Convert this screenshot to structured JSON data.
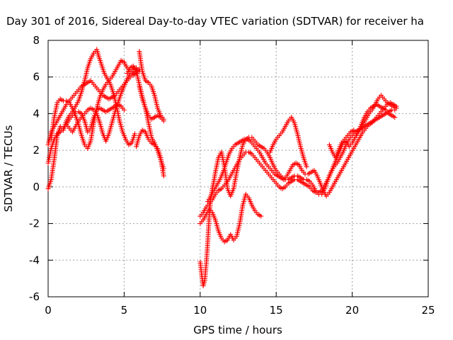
{
  "chart_data": {
    "type": "scatter",
    "title": "Day 301 of 2016, Sidereal Day-to-day VTEC variation (SDTVAR) for receiver ha",
    "xlabel": "GPS time / hours",
    "ylabel": "SDTVAR / TECUs",
    "xlim": [
      0,
      25
    ],
    "ylim": [
      -6,
      8
    ],
    "xticks": [
      0,
      5,
      10,
      15,
      20,
      25
    ],
    "yticks": [
      -6,
      -4,
      -2,
      0,
      2,
      4,
      6,
      8
    ],
    "grid": true,
    "legend": "none",
    "marker": "plus",
    "color": "#ff0000",
    "series": [
      {
        "x": [
          0.0,
          0.2,
          0.4,
          0.6,
          0.8,
          1.0,
          1.2,
          1.4,
          1.6,
          1.8,
          2.0,
          2.2,
          2.4,
          2.6,
          2.8,
          3.0,
          3.2,
          3.3,
          3.5,
          3.7,
          3.9,
          4.1,
          4.3,
          4.5,
          4.7,
          4.9,
          5.1,
          5.3,
          5.5,
          5.7
        ],
        "values": [
          -0.1,
          0.4,
          1.5,
          2.8,
          3.3,
          3.1,
          3.6,
          3.9,
          4.1,
          4.4,
          4.7,
          5.2,
          5.8,
          6.5,
          7.0,
          7.3,
          7.5,
          7.2,
          6.7,
          6.2,
          5.9,
          5.6,
          5.1,
          4.4,
          3.6,
          3.0,
          2.6,
          2.3,
          2.4,
          2.9
        ]
      },
      {
        "x": [
          0.0,
          0.2,
          0.4,
          0.6,
          0.8,
          1.0,
          1.2,
          1.4,
          1.6,
          1.8,
          2.0,
          2.2,
          2.4,
          2.6,
          2.8,
          3.0,
          3.2,
          3.4,
          3.6,
          3.8,
          4.0,
          4.2,
          4.4,
          4.6,
          4.8,
          5.0,
          5.2,
          5.4,
          5.6,
          5.8,
          6.0
        ],
        "values": [
          1.3,
          2.1,
          2.6,
          2.9,
          3.0,
          3.2,
          3.4,
          3.2,
          3.0,
          3.3,
          3.6,
          3.8,
          4.0,
          4.2,
          4.3,
          4.2,
          4.0,
          3.5,
          2.9,
          2.5,
          2.9,
          3.5,
          4.1,
          4.6,
          5.1,
          5.5,
          5.9,
          6.2,
          6.4,
          6.5,
          6.3
        ]
      },
      {
        "x": [
          0.2,
          0.4,
          0.6,
          0.8,
          1.0,
          1.2,
          1.4,
          1.6,
          1.8,
          2.0,
          2.2,
          2.4,
          2.6,
          2.8,
          3.0,
          3.2,
          3.4,
          3.6,
          3.8,
          4.0,
          4.2,
          4.4,
          4.6,
          4.8,
          5.0,
          5.2,
          5.4,
          5.6,
          5.8,
          6.0
        ],
        "values": [
          2.6,
          3.8,
          4.6,
          4.8,
          4.7,
          4.7,
          4.6,
          4.3,
          3.9,
          3.4,
          2.8,
          2.3,
          2.1,
          2.5,
          3.5,
          4.3,
          4.9,
          5.3,
          5.6,
          5.8,
          6.0,
          6.3,
          6.6,
          6.9,
          6.8,
          6.5,
          6.3,
          6.1,
          6.2,
          6.4
        ]
      },
      {
        "x": [
          0.0,
          0.2,
          0.4,
          0.6,
          0.8,
          1.0,
          1.2,
          1.4,
          1.6,
          1.8,
          2.0,
          2.2,
          2.4,
          2.6,
          2.8,
          3.0,
          3.2,
          3.4,
          3.6,
          3.8,
          4.0,
          4.2,
          4.4,
          4.6,
          4.8,
          5.0,
          5.2,
          5.4,
          5.6,
          5.8,
          6.0
        ],
        "values": [
          2.3,
          3.0,
          3.3,
          3.6,
          3.9,
          4.2,
          4.5,
          4.7,
          4.9,
          5.1,
          5.3,
          5.5,
          5.6,
          5.7,
          5.8,
          5.6,
          5.4,
          5.2,
          5.0,
          4.9,
          4.8,
          4.9,
          5.0,
          5.2,
          5.4,
          5.6,
          5.8,
          6.0,
          6.2,
          6.3,
          6.4
        ]
      },
      {
        "x": [
          1.2,
          1.4,
          1.6,
          1.8,
          2.0,
          2.2,
          2.4,
          2.6,
          2.8,
          3.0,
          3.2,
          3.4,
          3.6,
          3.8,
          4.0,
          4.2,
          4.4,
          4.6,
          4.8,
          5.0
        ],
        "values": [
          3.4,
          3.7,
          3.9,
          4.1,
          4.1,
          4.0,
          3.6,
          3.0,
          3.2,
          3.8,
          4.2,
          4.3,
          4.2,
          4.1,
          4.2,
          4.3,
          4.4,
          4.5,
          4.4,
          4.2
        ]
      },
      {
        "x": [
          5.2,
          5.4,
          5.6,
          5.8,
          6.0,
          6.2,
          6.4,
          6.6,
          6.8,
          7.0,
          7.2,
          7.4,
          7.6
        ],
        "values": [
          6.2,
          6.5,
          6.6,
          6.3,
          5.6,
          4.9,
          4.3,
          3.9,
          3.7,
          3.8,
          3.9,
          3.8,
          3.6
        ]
      },
      {
        "x": [
          6.0,
          6.1,
          6.2,
          6.4,
          6.6,
          6.8,
          7.0,
          7.2,
          7.4,
          7.6
        ],
        "values": [
          7.4,
          6.8,
          6.3,
          5.8,
          5.7,
          5.5,
          5.0,
          4.3,
          3.9,
          3.7
        ]
      },
      {
        "x": [
          5.8,
          6.0,
          6.2,
          6.4,
          6.6,
          6.8,
          7.0,
          7.2,
          7.4,
          7.6
        ],
        "values": [
          2.2,
          2.8,
          3.1,
          3.0,
          2.6,
          2.4,
          2.3,
          2.1,
          1.6,
          0.6
        ]
      },
      {
        "x": [
          6.0,
          6.2,
          6.4,
          6.6,
          6.8,
          7.0,
          7.2,
          7.4,
          7.6
        ],
        "values": [
          5.5,
          4.8,
          4.3,
          3.5,
          2.7,
          2.4,
          2.0,
          1.5,
          1.0
        ]
      },
      {
        "x": [
          10.0,
          10.1,
          10.2,
          10.3,
          10.4,
          10.5,
          10.6,
          10.7,
          10.8,
          10.9,
          11.0,
          11.2,
          11.4,
          11.6,
          11.8,
          12.0,
          12.2,
          12.4,
          12.6,
          12.8,
          13.0,
          13.2,
          13.4,
          13.6,
          13.8,
          14.0,
          14.2,
          14.4,
          14.6,
          14.8,
          15.0,
          15.2,
          15.4,
          15.6,
          15.8,
          16.0,
          16.2,
          16.4,
          16.6,
          16.8,
          17.0,
          17.2,
          17.4,
          17.6,
          17.8,
          18.0,
          18.2,
          18.4,
          18.6,
          18.8,
          19.0,
          19.2,
          19.4,
          19.6,
          19.8,
          20.0,
          20.2,
          20.4,
          20.6,
          20.8,
          21.0,
          21.2,
          21.4,
          21.6,
          21.8,
          22.0,
          22.2,
          22.4,
          22.6,
          22.8
        ],
        "values": [
          -4.1,
          -4.8,
          -5.4,
          -5.1,
          -4.2,
          -3.0,
          -1.5,
          -0.6,
          -0.1,
          0.3,
          0.8,
          1.6,
          1.9,
          1.1,
          -0.1,
          -0.5,
          -0.1,
          0.8,
          1.6,
          2.3,
          2.6,
          2.7,
          2.7,
          2.5,
          2.3,
          2.2,
          2.1,
          1.9,
          1.6,
          1.2,
          0.9,
          0.7,
          0.5,
          0.4,
          0.4,
          0.5,
          0.6,
          0.6,
          0.5,
          0.4,
          0.4,
          0.3,
          0.1,
          -0.2,
          -0.4,
          -0.4,
          -0.1,
          0.4,
          0.8,
          1.1,
          1.3,
          1.6,
          1.9,
          2.3,
          2.6,
          2.8,
          3.0,
          3.1,
          3.2,
          3.3,
          3.4,
          3.5,
          3.6,
          3.7,
          3.8,
          3.9,
          4.0,
          4.1,
          4.2,
          4.2
        ]
      },
      {
        "x": [
          10.0,
          10.2,
          10.4,
          10.6,
          10.8,
          11.0,
          11.2,
          11.4,
          11.6,
          11.8,
          12.0,
          12.2,
          12.4,
          12.6,
          12.8,
          13.0,
          13.2,
          13.4,
          13.6,
          13.8,
          14.0,
          14.2,
          14.4,
          14.6,
          14.8,
          15.0,
          15.2,
          15.4,
          15.6,
          15.8,
          16.0,
          16.2,
          16.4,
          16.6,
          16.8,
          17.0,
          17.2,
          17.4,
          17.6,
          17.8,
          18.0,
          18.2,
          18.4,
          18.6,
          18.8,
          19.0,
          19.2,
          19.4,
          19.6,
          19.8,
          20.0,
          20.2,
          20.4,
          20.6,
          20.8,
          21.0,
          21.2,
          21.4,
          21.6,
          21.8,
          22.0,
          22.2,
          22.4,
          22.6,
          22.8
        ],
        "values": [
          -1.6,
          -1.4,
          -1.1,
          -0.9,
          -0.7,
          -0.4,
          -0.2,
          -0.1,
          0.1,
          0.3,
          0.6,
          0.9,
          1.2,
          1.5,
          1.7,
          1.9,
          1.9,
          1.8,
          1.6,
          1.4,
          1.2,
          1.0,
          0.8,
          0.6,
          0.4,
          0.2,
          0.0,
          -0.1,
          0.0,
          0.2,
          0.3,
          0.4,
          0.4,
          0.3,
          0.2,
          0.1,
          0.0,
          -0.2,
          -0.3,
          -0.3,
          -0.2,
          0.1,
          0.4,
          0.8,
          1.2,
          1.6,
          2.0,
          2.4,
          2.5,
          2.2,
          2.4,
          2.7,
          3.0,
          3.4,
          3.8,
          4.1,
          4.3,
          4.4,
          4.5,
          4.4,
          4.3,
          4.2,
          4.0,
          3.9,
          3.8
        ]
      },
      {
        "x": [
          10.0,
          10.2,
          10.4,
          10.6,
          10.8,
          11.0,
          11.2,
          11.4,
          11.6,
          11.8,
          12.0,
          12.2,
          12.4,
          12.6,
          12.8,
          13.0,
          13.2,
          13.4,
          13.6,
          13.8,
          14.0
        ],
        "values": [
          -2.0,
          -1.8,
          -1.5,
          -1.2,
          -1.4,
          -1.8,
          -2.4,
          -2.8,
          -3.0,
          -2.9,
          -2.6,
          -2.9,
          -2.7,
          -2.0,
          -1.0,
          -0.4,
          -0.6,
          -1.0,
          -1.3,
          -1.5,
          -1.6
        ]
      },
      {
        "x": [
          10.5,
          10.7,
          10.9,
          11.1,
          11.3,
          11.5,
          11.7,
          11.9,
          12.1,
          12.3,
          12.5,
          12.7,
          12.9,
          13.1,
          13.3,
          13.5,
          13.7,
          13.9,
          14.1,
          14.3,
          14.5,
          14.7,
          14.9,
          15.1,
          15.3,
          15.5,
          15.7,
          15.9,
          16.1,
          16.3,
          16.5,
          16.7,
          16.9,
          17.1,
          17.3,
          17.5,
          17.7,
          17.9,
          18.1,
          18.3,
          18.5,
          18.7,
          18.9,
          19.1,
          19.3,
          19.5,
          19.7,
          19.9,
          20.1,
          20.3,
          20.5,
          20.7,
          20.9,
          21.1,
          21.3,
          21.5,
          21.7,
          21.9,
          22.1,
          22.3,
          22.5,
          22.7,
          22.9
        ],
        "values": [
          -0.8,
          -0.5,
          -0.2,
          0.1,
          0.4,
          0.8,
          1.3,
          1.8,
          2.1,
          2.3,
          2.4,
          2.5,
          2.6,
          2.6,
          2.5,
          2.3,
          2.1,
          1.9,
          1.6,
          1.3,
          1.1,
          0.9,
          0.7,
          0.6,
          0.5,
          0.4,
          0.6,
          0.9,
          1.2,
          1.3,
          1.2,
          0.9,
          0.7,
          0.7,
          0.8,
          0.9,
          0.6,
          0.2,
          -0.2,
          -0.5,
          -0.3,
          0.0,
          0.3,
          0.6,
          0.9,
          1.2,
          1.5,
          1.8,
          2.1,
          2.4,
          2.7,
          3.0,
          3.2,
          3.4,
          3.5,
          3.7,
          3.9,
          4.1,
          4.3,
          4.5,
          4.6,
          4.5,
          4.4
        ]
      },
      {
        "x": [
          14.6,
          14.8,
          15.0,
          15.2,
          15.4,
          15.6,
          15.8,
          16.0,
          16.2,
          16.4,
          16.6,
          16.8,
          17.0
        ],
        "values": [
          1.9,
          2.3,
          2.6,
          2.8,
          3.0,
          3.3,
          3.6,
          3.8,
          3.5,
          2.9,
          2.2,
          1.6,
          1.1
        ]
      },
      {
        "x": [
          18.5,
          18.7,
          18.9,
          19.1,
          19.3,
          19.5,
          19.7,
          19.9,
          20.1,
          20.3,
          20.5,
          20.7,
          20.9,
          21.1,
          21.3,
          21.5,
          21.7,
          21.9,
          22.1,
          22.3,
          22.5,
          22.7,
          22.9
        ],
        "values": [
          2.3,
          1.9,
          1.6,
          2.0,
          2.4,
          2.6,
          2.8,
          3.0,
          3.1,
          2.9,
          3.1,
          3.4,
          3.7,
          4.0,
          4.2,
          4.5,
          4.8,
          5.0,
          4.8,
          4.6,
          4.5,
          4.4,
          4.3
        ]
      }
    ]
  }
}
